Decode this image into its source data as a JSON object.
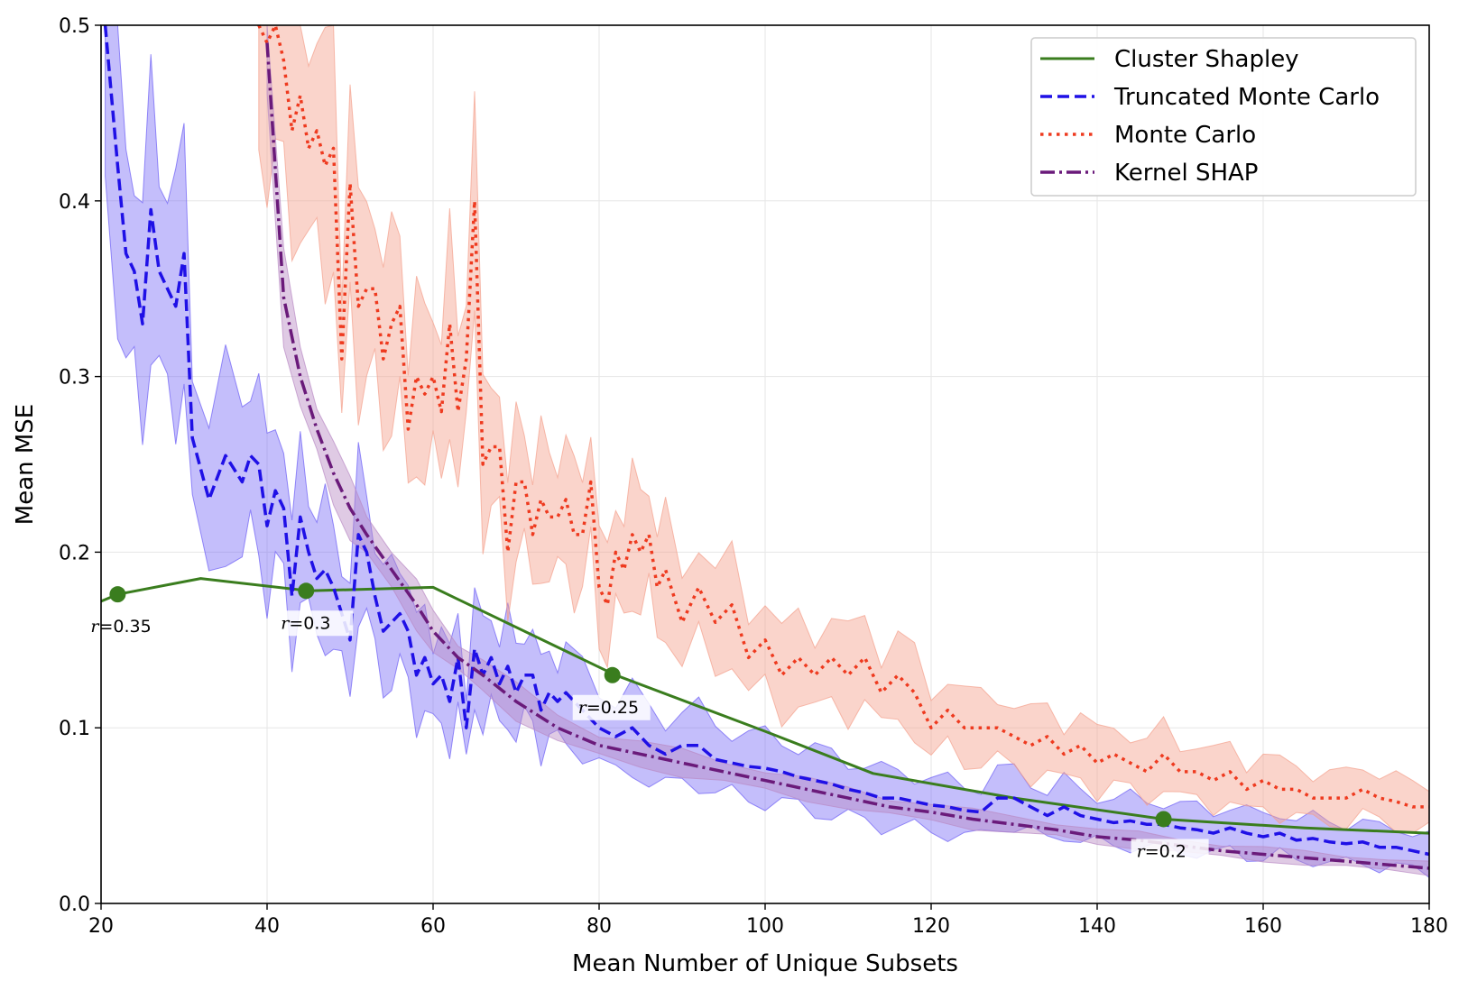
{
  "chart_data": {
    "type": "line",
    "title": "",
    "xlabel": "Mean Number of Unique Subsets",
    "ylabel": "Mean MSE",
    "xlim": [
      20,
      180
    ],
    "ylim": [
      0.0,
      0.5
    ],
    "xticks": [
      "20",
      "40",
      "60",
      "80",
      "100",
      "120",
      "140",
      "160",
      "180"
    ],
    "yticks": [
      "0.0",
      "0.1",
      "0.2",
      "0.3",
      "0.4",
      "0.5"
    ],
    "grid": true,
    "legend_position": "top-right",
    "series": [
      {
        "name": "Cluster Shapley",
        "color": "#3a7d1e",
        "style": "solid",
        "x": [
          20,
          22,
          32,
          45,
          60,
          82,
          100,
          113,
          130,
          148,
          165,
          180
        ],
        "y": [
          0.172,
          0.176,
          0.185,
          0.178,
          0.18,
          0.13,
          0.098,
          0.074,
          0.06,
          0.048,
          0.043,
          0.04
        ],
        "markers": [
          {
            "x": 22,
            "y": 0.176,
            "label": "=0.35"
          },
          {
            "x": 44.7,
            "y": 0.178,
            "label": "=0.3"
          },
          {
            "x": 81.6,
            "y": 0.13,
            "label": "=0.25"
          },
          {
            "x": 148,
            "y": 0.048,
            "label": "=0.2"
          }
        ]
      },
      {
        "name": "Truncated Monte Carlo",
        "color": "#1f10e6",
        "band_color": "#6b5cf5",
        "style": "dashed",
        "x": [
          20.5,
          22,
          23,
          24,
          25,
          26,
          27,
          28,
          29,
          30,
          31,
          33,
          35,
          37,
          38,
          39,
          40,
          41,
          42,
          43,
          44,
          45,
          46,
          47,
          48,
          49,
          50,
          51,
          52,
          53,
          54,
          55,
          56,
          57,
          58,
          59,
          60,
          61,
          62,
          63,
          64,
          65,
          66,
          67,
          68,
          69,
          70,
          71,
          72,
          73,
          74,
          75,
          76,
          78,
          80,
          82,
          84,
          86,
          88,
          90,
          92,
          94,
          96,
          98,
          100,
          102,
          104,
          106,
          108,
          110,
          112,
          114,
          116,
          118,
          120,
          122,
          124,
          126,
          128,
          130,
          132,
          134,
          136,
          138,
          140,
          142,
          144,
          146,
          148,
          150,
          152,
          154,
          156,
          158,
          160,
          162,
          164,
          166,
          168,
          170,
          172,
          174,
          176,
          178,
          180
        ],
        "y": [
          0.5,
          0.42,
          0.37,
          0.36,
          0.33,
          0.395,
          0.36,
          0.35,
          0.34,
          0.37,
          0.265,
          0.23,
          0.255,
          0.24,
          0.255,
          0.25,
          0.215,
          0.235,
          0.225,
          0.175,
          0.22,
          0.2,
          0.185,
          0.19,
          0.18,
          0.165,
          0.15,
          0.21,
          0.2,
          0.175,
          0.155,
          0.16,
          0.165,
          0.155,
          0.13,
          0.14,
          0.125,
          0.13,
          0.115,
          0.14,
          0.1,
          0.145,
          0.13,
          0.14,
          0.125,
          0.135,
          0.12,
          0.13,
          0.13,
          0.11,
          0.12,
          0.115,
          0.12,
          0.11,
          0.1,
          0.095,
          0.1,
          0.09,
          0.085,
          0.09,
          0.09,
          0.082,
          0.08,
          0.078,
          0.077,
          0.075,
          0.072,
          0.07,
          0.068,
          0.065,
          0.063,
          0.06,
          0.06,
          0.058,
          0.056,
          0.055,
          0.053,
          0.052,
          0.06,
          0.06,
          0.055,
          0.05,
          0.055,
          0.05,
          0.048,
          0.046,
          0.047,
          0.045,
          0.045,
          0.043,
          0.042,
          0.04,
          0.043,
          0.04,
          0.038,
          0.04,
          0.036,
          0.037,
          0.035,
          0.034,
          0.035,
          0.032,
          0.032,
          0.03,
          0.028
        ]
      },
      {
        "name": "Monte Carlo",
        "color": "#ee3a1f",
        "band_color": "#f4a08c",
        "style": "dotted",
        "x": [
          39,
          40,
          41,
          42,
          43,
          44,
          45,
          46,
          47,
          48,
          49,
          50,
          51,
          52,
          53,
          54,
          55,
          56,
          57,
          58,
          59,
          60,
          61,
          62,
          63,
          64,
          65,
          66,
          67,
          68,
          69,
          70,
          71,
          72,
          73,
          74,
          75,
          76,
          77,
          78,
          79,
          80,
          81,
          82,
          83,
          84,
          85,
          86,
          87,
          88,
          90,
          92,
          94,
          96,
          98,
          100,
          102,
          104,
          106,
          108,
          110,
          112,
          114,
          116,
          118,
          120,
          122,
          124,
          126,
          128,
          130,
          132,
          134,
          136,
          138,
          140,
          142,
          144,
          146,
          148,
          150,
          152,
          154,
          156,
          158,
          160,
          162,
          164,
          166,
          168,
          170,
          172,
          174,
          176,
          178,
          180
        ],
        "y": [
          0.5,
          0.49,
          0.5,
          0.48,
          0.44,
          0.46,
          0.43,
          0.44,
          0.42,
          0.43,
          0.31,
          0.41,
          0.34,
          0.35,
          0.35,
          0.31,
          0.33,
          0.34,
          0.27,
          0.3,
          0.29,
          0.3,
          0.28,
          0.33,
          0.28,
          0.31,
          0.4,
          0.25,
          0.26,
          0.26,
          0.2,
          0.24,
          0.24,
          0.21,
          0.23,
          0.22,
          0.22,
          0.23,
          0.21,
          0.21,
          0.24,
          0.18,
          0.17,
          0.2,
          0.19,
          0.21,
          0.2,
          0.21,
          0.18,
          0.19,
          0.16,
          0.18,
          0.16,
          0.17,
          0.14,
          0.15,
          0.13,
          0.14,
          0.13,
          0.14,
          0.13,
          0.14,
          0.12,
          0.13,
          0.12,
          0.1,
          0.11,
          0.1,
          0.1,
          0.1,
          0.095,
          0.09,
          0.095,
          0.085,
          0.09,
          0.08,
          0.085,
          0.08,
          0.075,
          0.085,
          0.075,
          0.075,
          0.07,
          0.075,
          0.065,
          0.07,
          0.065,
          0.065,
          0.06,
          0.06,
          0.06,
          0.065,
          0.06,
          0.058,
          0.055,
          0.055
        ]
      },
      {
        "name": "Kernel SHAP",
        "color": "#6a1a7a",
        "band_color": "#b98ac4",
        "style": "dashdot",
        "x": [
          40,
          42,
          44,
          46,
          48,
          50,
          52,
          55,
          58,
          60,
          63,
          66,
          70,
          75,
          80,
          85,
          90,
          95,
          100,
          105,
          110,
          115,
          120,
          125,
          130,
          135,
          140,
          145,
          150,
          155,
          160,
          165,
          170,
          175,
          180
        ],
        "y": [
          0.49,
          0.345,
          0.3,
          0.27,
          0.245,
          0.225,
          0.21,
          0.19,
          0.17,
          0.155,
          0.14,
          0.13,
          0.115,
          0.1,
          0.09,
          0.085,
          0.08,
          0.075,
          0.07,
          0.065,
          0.06,
          0.055,
          0.052,
          0.048,
          0.045,
          0.042,
          0.038,
          0.036,
          0.033,
          0.03,
          0.028,
          0.026,
          0.024,
          0.022,
          0.02
        ]
      }
    ]
  }
}
